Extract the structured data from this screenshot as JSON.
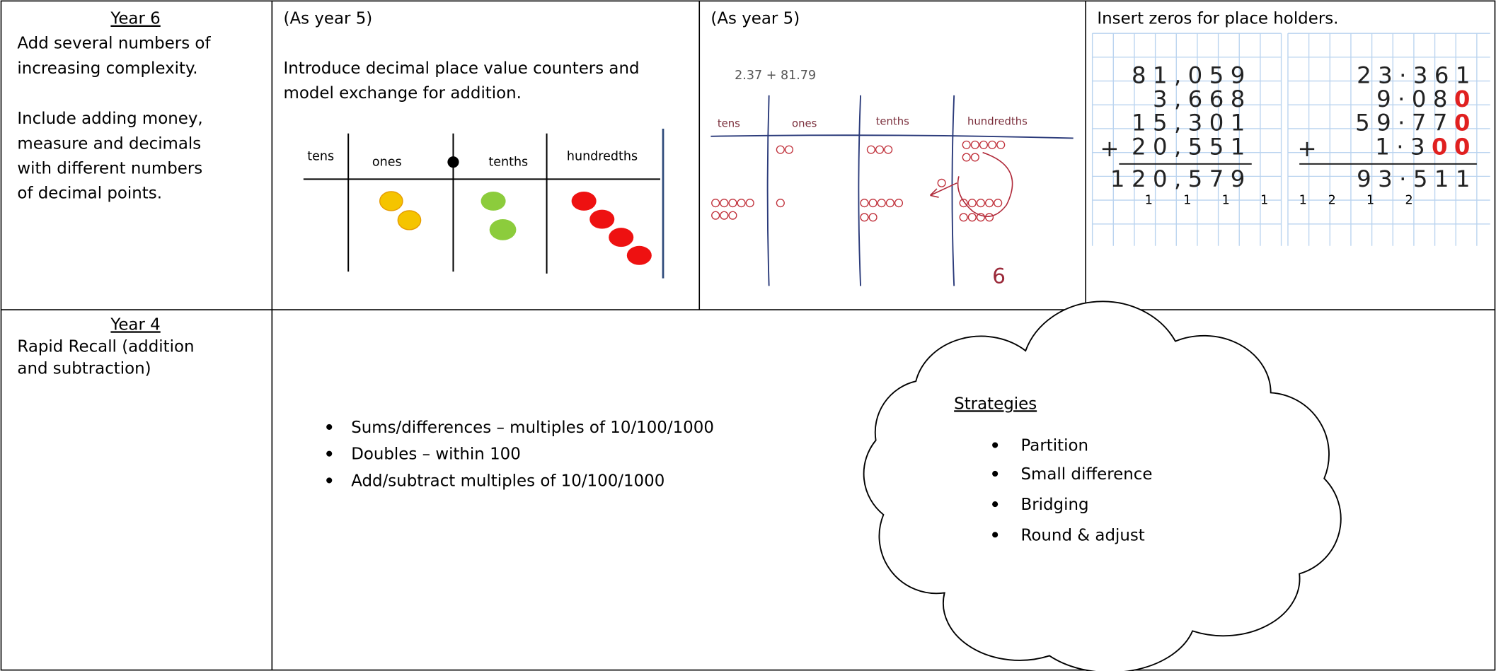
{
  "row1": {
    "label": {
      "title": "Year 6",
      "lines": [
        "Add several numbers of",
        "increasing complexity.",
        "Include adding money,",
        "measure and decimals",
        "with different numbers",
        "of decimal points."
      ]
    },
    "cells": [
      {
        "heading": "(As year 5)",
        "lines": [
          "Introduce decimal place value counters and",
          "model exchange for addition."
        ],
        "diagram": {
          "columns": [
            "tens",
            "ones",
            "tenths",
            "hundredths"
          ]
        }
      },
      {
        "heading": "(As year 5)",
        "diagram": {
          "sum": "2.37 + 81.79",
          "columns": [
            "tens",
            "ones",
            "tenths",
            "hundredths"
          ],
          "note": "6"
        }
      },
      {
        "heading": "Insert zeros for place holders.",
        "diagram": {
          "left": {
            "rows": [
              "81,059",
              "3,668",
              "15,301",
              "20,551"
            ],
            "sign": "+",
            "total": "120,579",
            "carries": "1 1 1 1 1"
          },
          "right": {
            "rows": [
              {
                "digits": "23·361"
              },
              {
                "digits": "9·08",
                "zeros": "0"
              },
              {
                "digits": "59·77",
                "zeros": "0"
              },
              {
                "digits": "1·3",
                "zeros": "00"
              }
            ],
            "sign": "+",
            "total": "93·511",
            "carries": "2 1 2"
          }
        }
      }
    ]
  },
  "row2": {
    "label": {
      "title": "Year 4",
      "lines": [
        "Rapid Recall (addition",
        "and subtraction)"
      ]
    },
    "bullets": [
      "Sums/differences – multiples of 10/100/1000",
      "Doubles – within 100",
      "Add/subtract multiples of 10/100/1000"
    ],
    "cloud": {
      "title": "Strategies",
      "bullets": [
        "Partition",
        "Small difference",
        "Bridging",
        "Round & adjust"
      ]
    }
  }
}
